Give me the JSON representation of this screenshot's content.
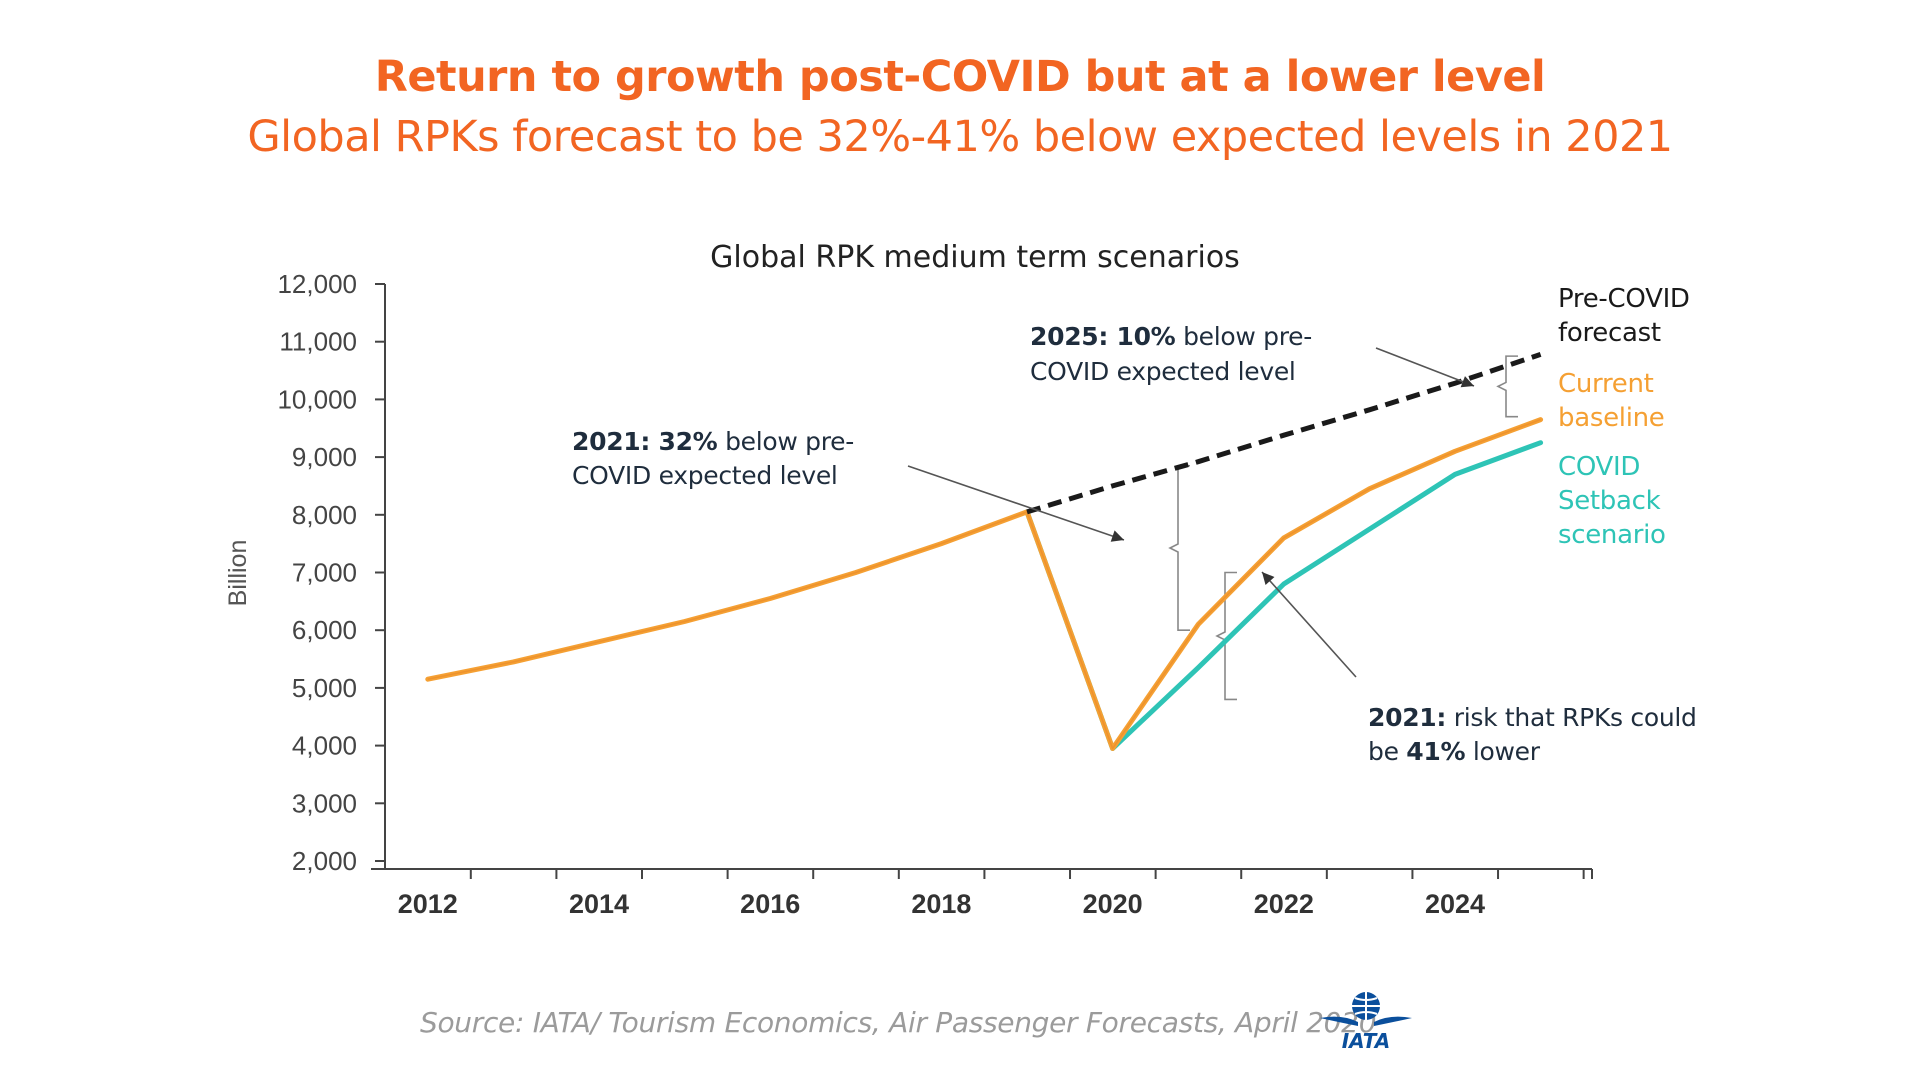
{
  "header": {
    "title": "Return to growth post-COVID but at a lower level",
    "subtitle": "Global RPKs forecast to be 32%-41% below expected levels in 2021"
  },
  "chart_data": {
    "type": "line",
    "title": "Global RPK medium term scenarios",
    "ylabel": "Billion",
    "xlabel": "",
    "ylim": [
      2000,
      12000
    ],
    "xlim": [
      2011.5,
      2025.6
    ],
    "yticks": [
      2000,
      3000,
      4000,
      5000,
      6000,
      7000,
      8000,
      9000,
      10000,
      11000,
      12000
    ],
    "ytick_labels": [
      "2,000",
      "3,000",
      "4,000",
      "5,000",
      "6,000",
      "7,000",
      "8,000",
      "9,000",
      "10,000",
      "11,000",
      "12,000"
    ],
    "xticks": [
      2012,
      2014,
      2016,
      2018,
      2020,
      2022,
      2024
    ],
    "xtick_labels": [
      "2012",
      "2014",
      "2016",
      "2018",
      "2020",
      "2022",
      "2024"
    ],
    "series": [
      {
        "name": "Pre-COVID forecast",
        "color": "#1a1a1a",
        "dashed": true,
        "x": [
          2019,
          2020,
          2021,
          2022,
          2023,
          2024,
          2025
        ],
        "y": [
          8050,
          8500,
          8920,
          9380,
          9820,
          10280,
          10780
        ]
      },
      {
        "name": "COVID Setback scenario",
        "color": "#2ec4b6",
        "dashed": false,
        "x": [
          2019,
          2020,
          2021,
          2022,
          2023,
          2024,
          2025
        ],
        "y": [
          8050,
          3950,
          5350,
          6800,
          7750,
          8700,
          9250
        ]
      },
      {
        "name": "Current baseline",
        "color": "#f5a033",
        "dashed": false,
        "x": [
          2012,
          2013,
          2014,
          2015,
          2016,
          2017,
          2018,
          2019,
          2020,
          2021,
          2022,
          2023,
          2024,
          2025
        ],
        "y": [
          5150,
          5450,
          5800,
          6150,
          6550,
          7000,
          7500,
          8050,
          3950,
          6100,
          7600,
          8450,
          9100,
          9650
        ]
      }
    ],
    "legend": [
      {
        "text_lines": [
          "Pre-COVID",
          "forecast"
        ],
        "color": "#1a1a1a"
      },
      {
        "text_lines": [
          "Current",
          "baseline"
        ],
        "color": "#f5a033"
      },
      {
        "text_lines": [
          "COVID",
          "Setback",
          "scenario"
        ],
        "color": "#2ec4b6"
      }
    ],
    "annotations": [
      {
        "bold": "2025: 10%",
        "rest": " below pre-",
        "line2": "COVID expected level"
      },
      {
        "bold": "2021: 32%",
        "rest": " below pre-",
        "line2": "COVID expected level"
      },
      {
        "bold": "2021:",
        "rest": " risk that RPKs could",
        "line2a": "be ",
        "line2b": "41%",
        "line2c": " lower"
      }
    ]
  },
  "footer": {
    "source": "Source: IATA/ Tourism Economics, Air Passenger Forecasts, April 2020",
    "logo_text": "IATA"
  }
}
